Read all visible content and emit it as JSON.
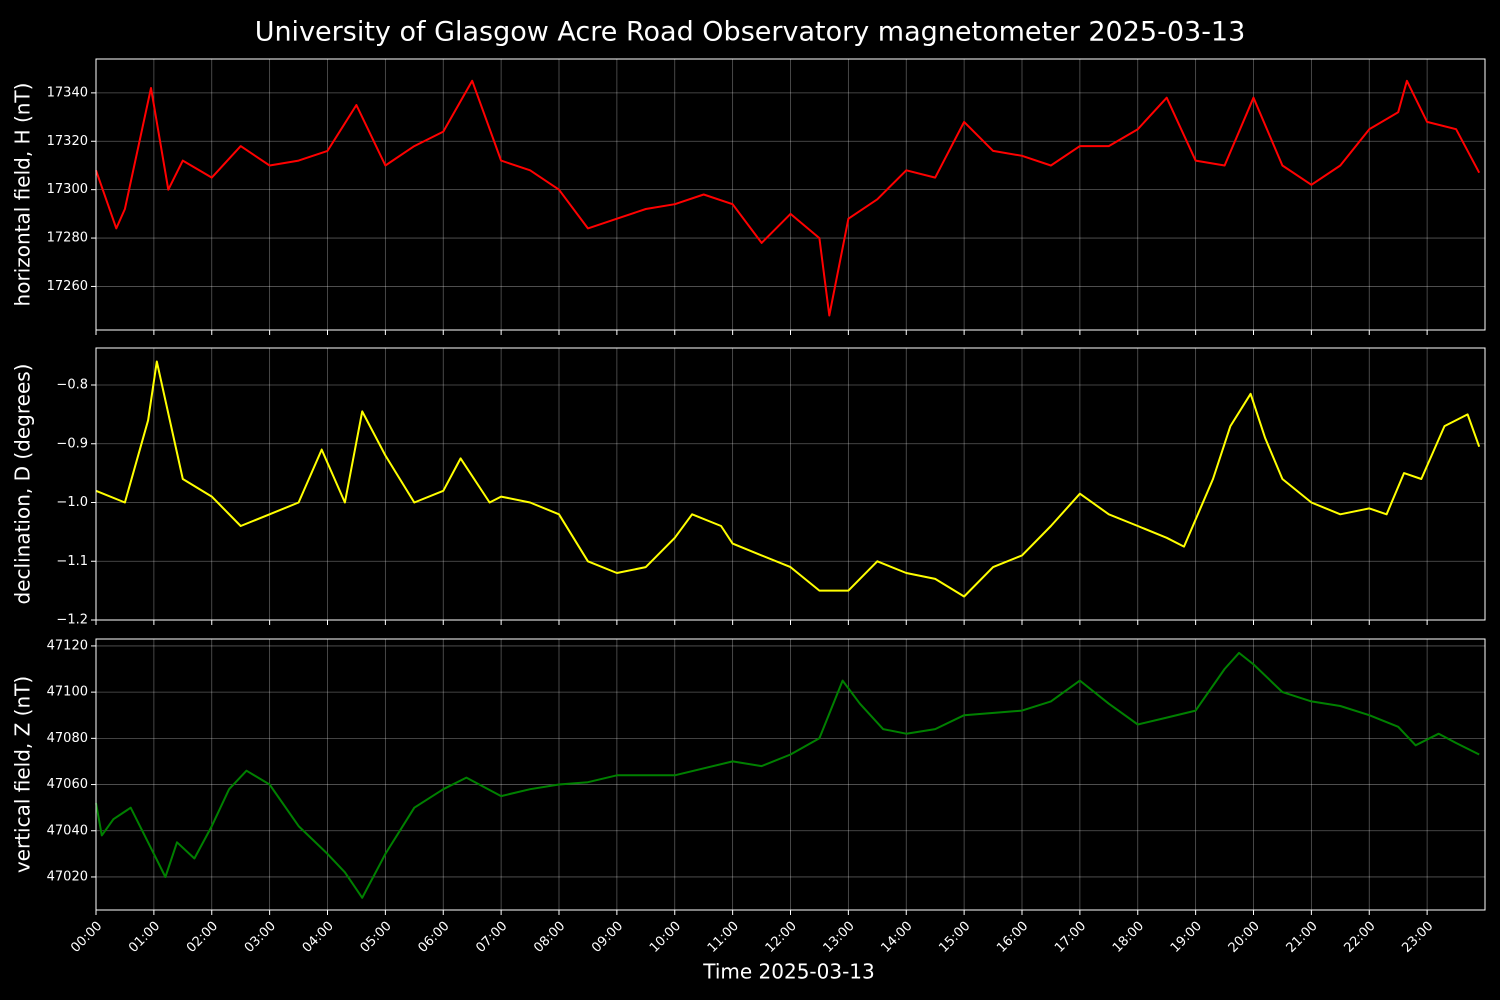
{
  "chart_data": [
    {
      "type": "line",
      "title": "University of Glasgow Acre Road Observatory magnetometer 2025-03-13",
      "ylabel": "horizontal field, H (nT)",
      "color": "#ff0000",
      "grid": true,
      "xlim": [
        0,
        24
      ],
      "ylim": [
        17242,
        17354
      ],
      "yticks": [
        17260,
        17280,
        17300,
        17320,
        17340
      ],
      "x": [
        0,
        0.35,
        0.5,
        0.95,
        1.25,
        1.5,
        2,
        2.5,
        3,
        3.5,
        4,
        4.5,
        5,
        5.5,
        6,
        6.5,
        7,
        7.5,
        8,
        8.5,
        9,
        9.5,
        10,
        10.5,
        11,
        11.5,
        12,
        12.5,
        12.67,
        13,
        13.5,
        14,
        14.5,
        15,
        15.5,
        16,
        16.5,
        17,
        17.5,
        18,
        18.5,
        19,
        19.5,
        20,
        20.5,
        21,
        21.5,
        22,
        22.5,
        22.65,
        23,
        23.5,
        23.9
      ],
      "values": [
        17308,
        17284,
        17292,
        17342,
        17300,
        17312,
        17305,
        17318,
        17310,
        17312,
        17316,
        17335,
        17310,
        17318,
        17324,
        17345,
        17312,
        17308,
        17300,
        17284,
        17288,
        17292,
        17294,
        17298,
        17294,
        17278,
        17290,
        17280,
        17248,
        17288,
        17296,
        17308,
        17305,
        17328,
        17316,
        17314,
        17310,
        17318,
        17318,
        17325,
        17338,
        17312,
        17310,
        17338,
        17310,
        17302,
        17310,
        17325,
        17332,
        17345,
        17328,
        17325,
        17307
      ]
    },
    {
      "type": "line",
      "ylabel": "declination, D (degrees)",
      "color": "#ffff00",
      "grid": true,
      "xlim": [
        0,
        24
      ],
      "ylim": [
        -1.2,
        -0.737
      ],
      "yticks": [
        {
          "value": -1.2,
          "label": "−1.2"
        },
        {
          "value": -1.1,
          "label": "−1.1"
        },
        {
          "value": -1.0,
          "label": "−1.0"
        },
        {
          "value": -0.9,
          "label": "−0.9"
        },
        {
          "value": -0.8,
          "label": "−0.8"
        }
      ],
      "x": [
        0,
        0.5,
        0.9,
        1.05,
        1.5,
        2,
        2.5,
        3,
        3.5,
        3.9,
        4.3,
        4.6,
        5,
        5.5,
        6,
        6.3,
        6.8,
        7,
        7.5,
        8,
        8.5,
        9,
        9.5,
        10,
        10.3,
        10.8,
        11,
        11.5,
        12,
        12.5,
        13,
        13.5,
        14,
        14.5,
        15,
        15.5,
        16,
        16.5,
        17,
        17.5,
        18,
        18.5,
        18.8,
        19.3,
        19.6,
        19.95,
        20.2,
        20.5,
        21,
        21.5,
        22,
        22.3,
        22.6,
        22.9,
        23.3,
        23.7,
        23.9
      ],
      "values": [
        -0.98,
        -1.0,
        -0.86,
        -0.76,
        -0.96,
        -0.99,
        -1.04,
        -1.02,
        -1.0,
        -0.91,
        -1.0,
        -0.845,
        -0.92,
        -1.0,
        -0.98,
        -0.925,
        -1.0,
        -0.99,
        -1.0,
        -1.02,
        -1.1,
        -1.12,
        -1.11,
        -1.06,
        -1.02,
        -1.04,
        -1.07,
        -1.09,
        -1.11,
        -1.15,
        -1.15,
        -1.1,
        -1.12,
        -1.13,
        -1.16,
        -1.11,
        -1.09,
        -1.04,
        -0.985,
        -1.02,
        -1.04,
        -1.06,
        -1.075,
        -0.96,
        -0.87,
        -0.815,
        -0.89,
        -0.96,
        -1.0,
        -1.02,
        -1.01,
        -1.02,
        -0.95,
        -0.96,
        -0.87,
        -0.85,
        -0.905
      ]
    },
    {
      "type": "line",
      "ylabel": "vertical field, Z (nT)",
      "xlabel": "Time 2025-03-13",
      "color": "#008000",
      "grid": true,
      "xlim": [
        0,
        24
      ],
      "ylim": [
        47005.7,
        47123
      ],
      "yticks": [
        47020,
        47040,
        47060,
        47080,
        47100,
        47120
      ],
      "xticks": [
        {
          "value": 0,
          "label": "00:00"
        },
        {
          "value": 1,
          "label": "01:00"
        },
        {
          "value": 2,
          "label": "02:00"
        },
        {
          "value": 3,
          "label": "03:00"
        },
        {
          "value": 4,
          "label": "04:00"
        },
        {
          "value": 5,
          "label": "05:00"
        },
        {
          "value": 6,
          "label": "06:00"
        },
        {
          "value": 7,
          "label": "07:00"
        },
        {
          "value": 8,
          "label": "08:00"
        },
        {
          "value": 9,
          "label": "09:00"
        },
        {
          "value": 10,
          "label": "10:00"
        },
        {
          "value": 11,
          "label": "11:00"
        },
        {
          "value": 12,
          "label": "12:00"
        },
        {
          "value": 13,
          "label": "13:00"
        },
        {
          "value": 14,
          "label": "14:00"
        },
        {
          "value": 15,
          "label": "15:00"
        },
        {
          "value": 16,
          "label": "16:00"
        },
        {
          "value": 17,
          "label": "17:00"
        },
        {
          "value": 18,
          "label": "18:00"
        },
        {
          "value": 19,
          "label": "19:00"
        },
        {
          "value": 20,
          "label": "20:00"
        },
        {
          "value": 21,
          "label": "21:00"
        },
        {
          "value": 22,
          "label": "22:00"
        },
        {
          "value": 23,
          "label": "23:00"
        }
      ],
      "x": [
        0,
        0.1,
        0.3,
        0.6,
        1,
        1.2,
        1.4,
        1.7,
        2,
        2.3,
        2.6,
        3,
        3.5,
        4,
        4.3,
        4.6,
        5,
        5.5,
        6,
        6.4,
        7,
        7.5,
        8,
        8.5,
        9,
        10,
        11,
        11.5,
        12,
        12.5,
        12.9,
        13.2,
        13.6,
        14,
        14.5,
        15,
        16,
        16.5,
        17,
        17.5,
        18,
        18.5,
        19,
        19.5,
        19.75,
        20,
        20.5,
        21,
        21.5,
        22,
        22.5,
        22.8,
        23.2,
        23.5,
        23.9
      ],
      "values": [
        47052,
        47038,
        47045,
        47050,
        47030,
        47020,
        47035,
        47028,
        47042,
        47058,
        47066,
        47060,
        47042,
        47030,
        47022,
        47011,
        47030,
        47050,
        47058,
        47063,
        47055,
        47058,
        47060,
        47061,
        47064,
        47064,
        47070,
        47068,
        47073,
        47080,
        47105,
        47095,
        47084,
        47082,
        47084,
        47090,
        47092,
        47096,
        47105,
        47095,
        47086,
        47089,
        47092,
        47110,
        47117,
        47112,
        47100,
        47096,
        47094,
        47090,
        47085,
        47077,
        47082,
        47078,
        47073
      ]
    }
  ]
}
